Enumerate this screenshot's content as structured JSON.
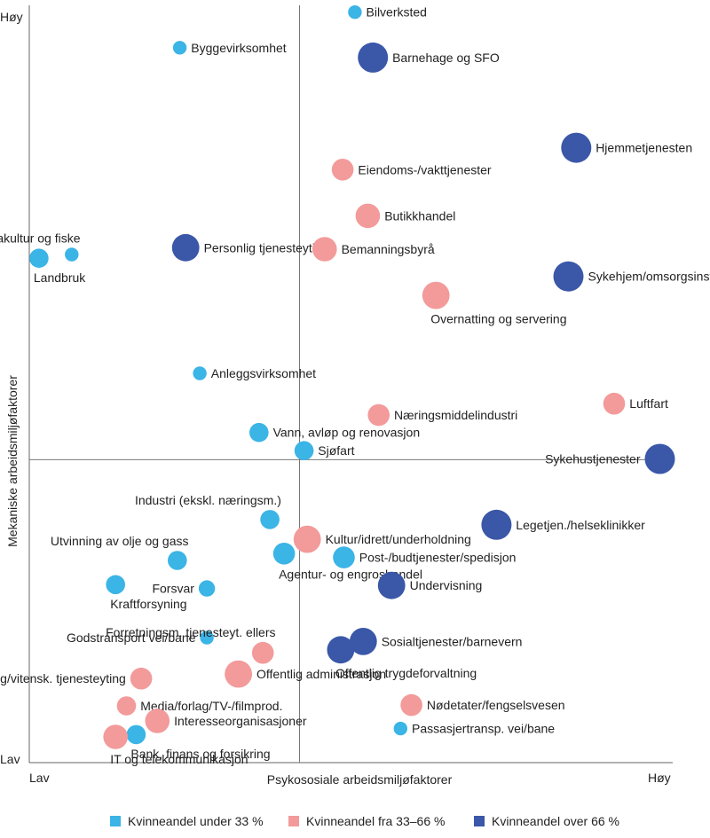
{
  "chart_data": {
    "type": "scatter",
    "xlabel": "Psykososiale arbeidsmiljøfaktorer",
    "ylabel": "Mekaniske arbeidsmiljøfaktorer",
    "x_low": "Lav",
    "x_high": "Høy",
    "y_low": "Lav",
    "y_high": "Høy",
    "xlim": [
      0,
      100
    ],
    "ylim": [
      0,
      100
    ],
    "quadrant_lines": {
      "x": 42,
      "y": 40
    },
    "legend": [
      {
        "key": "low",
        "label": "Kvinneandel under 33 %",
        "color": "#3bb4e6"
      },
      {
        "key": "mid",
        "label": "Kvinneandel fra 33–66 %",
        "color": "#f39a9a"
      },
      {
        "key": "high",
        "label": "Kvinneandel over 66 %",
        "color": "#3a57a8"
      }
    ],
    "points": [
      {
        "name": "Bilverksted",
        "x": 50.6,
        "y": 99.1,
        "cat": "low",
        "size": 3,
        "pos": "right"
      },
      {
        "name": "Byggevirksomhet",
        "x": 23.4,
        "y": 94.4,
        "cat": "low",
        "size": 3,
        "pos": "right"
      },
      {
        "name": "Barnehage og SFO",
        "x": 53.4,
        "y": 93.1,
        "cat": "high",
        "size": 9,
        "pos": "right"
      },
      {
        "name": "Hjemmetjenesten",
        "x": 85.0,
        "y": 81.2,
        "cat": "high",
        "size": 9,
        "pos": "right"
      },
      {
        "name": "Eiendoms-/vakttjenester",
        "x": 48.7,
        "y": 78.3,
        "cat": "mid",
        "size": 6,
        "pos": "right"
      },
      {
        "name": "Butikkhandel",
        "x": 52.6,
        "y": 72.2,
        "cat": "mid",
        "size": 7,
        "pos": "right"
      },
      {
        "name": "Landbruk",
        "x": 1.5,
        "y": 66.6,
        "cat": "low",
        "size": 5,
        "pos": "below"
      },
      {
        "name": "Akvakultur og fiske",
        "x": 6.6,
        "y": 67.1,
        "cat": "low",
        "size": 3,
        "pos": "above"
      },
      {
        "name": "Personlig tjenesteyting",
        "x": 24.3,
        "y": 68.0,
        "cat": "high",
        "size": 8,
        "pos": "right"
      },
      {
        "name": "Bemanningsbyrå",
        "x": 45.9,
        "y": 67.8,
        "cat": "mid",
        "size": 7,
        "pos": "right"
      },
      {
        "name": "Sykehjem/omsorgsinst.",
        "x": 83.8,
        "y": 64.2,
        "cat": "high",
        "size": 9,
        "pos": "right"
      },
      {
        "name": "Overnatting og servering",
        "x": 63.2,
        "y": 61.7,
        "cat": "mid",
        "size": 8,
        "pos": "below"
      },
      {
        "name": "Luftfart",
        "x": 90.9,
        "y": 47.4,
        "cat": "mid",
        "size": 6,
        "pos": "right"
      },
      {
        "name": "Anleggsvirksomhet",
        "x": 26.5,
        "y": 51.4,
        "cat": "low",
        "size": 3,
        "pos": "right"
      },
      {
        "name": "Næringsmiddelindustri",
        "x": 54.3,
        "y": 45.9,
        "cat": "mid",
        "size": 6,
        "pos": "right"
      },
      {
        "name": "Vann, avløp og renovasjon",
        "x": 35.7,
        "y": 43.6,
        "cat": "low",
        "size": 5,
        "pos": "right"
      },
      {
        "name": "Sjøfart",
        "x": 42.7,
        "y": 41.2,
        "cat": "low",
        "size": 5,
        "pos": "right"
      },
      {
        "name": "Sykehustjenester",
        "x": 98.0,
        "y": 40.1,
        "cat": "high",
        "size": 9,
        "pos": "left"
      },
      {
        "name": "Industri (ekskl. næringsm.)",
        "x": 37.4,
        "y": 32.1,
        "cat": "low",
        "size": 5,
        "pos": "above"
      },
      {
        "name": "Kultur/idrett/underholdning",
        "x": 43.2,
        "y": 29.5,
        "cat": "mid",
        "size": 8,
        "pos": "right"
      },
      {
        "name": "Legetjen./helseklinikker",
        "x": 72.6,
        "y": 31.4,
        "cat": "high",
        "size": 9,
        "pos": "right"
      },
      {
        "name": "Utvinning av olje og gass",
        "x": 23.0,
        "y": 26.7,
        "cat": "low",
        "size": 5,
        "pos": "above"
      },
      {
        "name": "Agentur- og engroshandel",
        "x": 39.6,
        "y": 27.6,
        "cat": "low",
        "size": 6,
        "pos": "below"
      },
      {
        "name": "Post-/budtjenester/spedisjon",
        "x": 48.9,
        "y": 27.1,
        "cat": "low",
        "size": 6,
        "pos": "right"
      },
      {
        "name": "Kraftforsyning",
        "x": 13.4,
        "y": 23.5,
        "cat": "low",
        "size": 5,
        "pos": "below"
      },
      {
        "name": "Forsvar",
        "x": 27.6,
        "y": 23.0,
        "cat": "low",
        "size": 4,
        "pos": "left"
      },
      {
        "name": "Undervisning",
        "x": 56.3,
        "y": 23.4,
        "cat": "high",
        "size": 8,
        "pos": "right"
      },
      {
        "name": "Godstransport vei/bane",
        "x": 27.6,
        "y": 16.5,
        "cat": "low",
        "size": 3,
        "pos": "left"
      },
      {
        "name": "Forretningsm. tjenesteyt. ellers",
        "x": 36.3,
        "y": 14.5,
        "cat": "mid",
        "size": 6,
        "pos": "above"
      },
      {
        "name": "Sosialtjenester/barnevern",
        "x": 51.9,
        "y": 16.0,
        "cat": "high",
        "size": 8,
        "pos": "right"
      },
      {
        "name": "Offentlig trygdeforvaltning",
        "x": 48.4,
        "y": 14.9,
        "cat": "high",
        "size": 8,
        "pos": "below"
      },
      {
        "name": "Faglig/vitensk. tjenesteyting",
        "x": 17.4,
        "y": 11.1,
        "cat": "mid",
        "size": 6,
        "pos": "left"
      },
      {
        "name": "Offentlig administrasjon",
        "x": 32.5,
        "y": 11.7,
        "cat": "mid",
        "size": 8,
        "pos": "right"
      },
      {
        "name": "Media/forlag/TV-/filmprod.",
        "x": 15.1,
        "y": 7.5,
        "cat": "mid",
        "size": 5,
        "pos": "right"
      },
      {
        "name": "Nødetater/fengselsvesen",
        "x": 59.4,
        "y": 7.6,
        "cat": "mid",
        "size": 6,
        "pos": "right"
      },
      {
        "name": "Interesseorganisasjoner",
        "x": 19.9,
        "y": 5.5,
        "cat": "mid",
        "size": 7,
        "pos": "right"
      },
      {
        "name": "Passasjertransp. vei/bane",
        "x": 57.7,
        "y": 4.5,
        "cat": "low",
        "size": 3,
        "pos": "right"
      },
      {
        "name": "Bank, finans og forsikring",
        "x": 16.6,
        "y": 3.7,
        "cat": "low",
        "size": 5,
        "pos": "below"
      },
      {
        "name": "IT og telekommunikasjon",
        "x": 13.4,
        "y": 3.4,
        "cat": "mid",
        "size": 7,
        "pos": "below"
      }
    ]
  }
}
